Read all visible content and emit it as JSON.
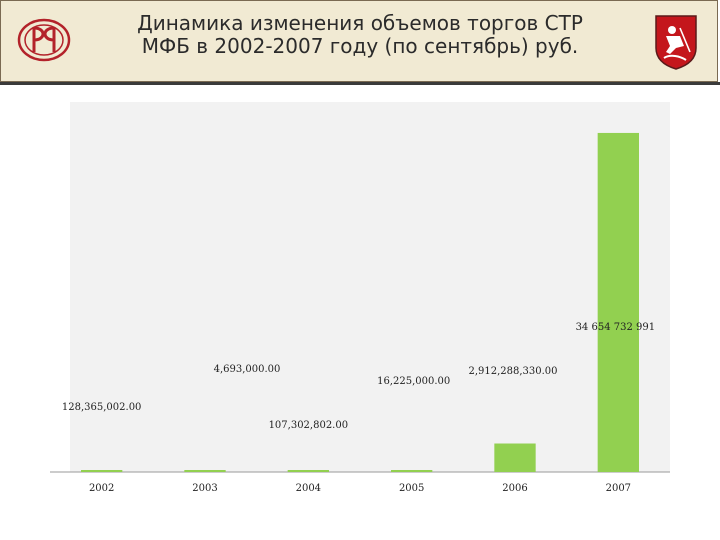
{
  "header": {
    "title": "Динамика изменения объемов торгов СТР\nМФБ в 2002-2007 году (по сентябрь) руб.",
    "left_logo_icon": "mfb-logo-icon",
    "right_logo_icon": "moscow-coat-of-arms-icon"
  },
  "colors": {
    "bar": "#92d050",
    "plot_bg": "#f2f2f2",
    "header_bg": "#f1ead3"
  },
  "chart_data": {
    "type": "bar",
    "categories": [
      "2002",
      "2003",
      "2004",
      "2005",
      "2006",
      "2007"
    ],
    "values": [
      128365002,
      4693000,
      107302802,
      16225000,
      2912288330,
      34654732991
    ],
    "data_labels": [
      "128,365,002.00",
      "4,693,000.00",
      "107,302,802.00",
      "16,225,000.00",
      "2,912,288,330.00",
      "34 654 732 991"
    ],
    "ylim": [
      0,
      37000000000
    ],
    "title": "",
    "xlabel": "",
    "ylabel": "",
    "legend": "none",
    "grid": false
  }
}
